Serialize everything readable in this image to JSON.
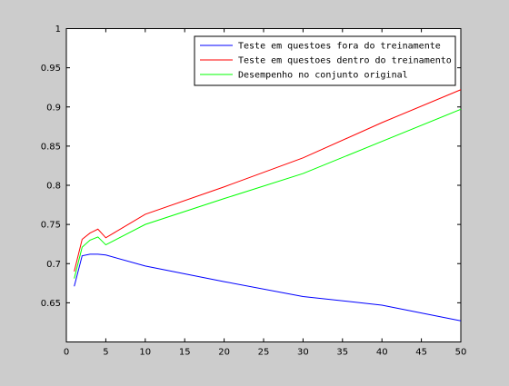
{
  "chart_data": {
    "type": "line",
    "title": "",
    "xlabel": "",
    "ylabel": "",
    "xlim": [
      0,
      50
    ],
    "ylim": [
      0.6,
      1.0
    ],
    "xticks": [
      0,
      5,
      10,
      15,
      20,
      25,
      30,
      35,
      40,
      45,
      50
    ],
    "yticks": [
      0.65,
      0.7,
      0.75,
      0.8,
      0.85,
      0.9,
      0.95,
      1
    ],
    "ytick_labels": [
      "0.65",
      "0.7",
      "0.75",
      "0.8",
      "0.85",
      "0.9",
      "0.95",
      "1"
    ],
    "grid": false,
    "legend_position": "top-right",
    "series": [
      {
        "name": "Teste em questoes fora do treinamente",
        "color": "#0000ff",
        "x": [
          1,
          2,
          3,
          4,
          5,
          10,
          20,
          30,
          40,
          50
        ],
        "y": [
          0.671,
          0.71,
          0.712,
          0.712,
          0.711,
          0.697,
          0.677,
          0.658,
          0.647,
          0.627
        ]
      },
      {
        "name": "Teste em questoes dentro do treinamento",
        "color": "#ff0000",
        "x": [
          1,
          2,
          3,
          4,
          5,
          10,
          20,
          30,
          40,
          50
        ],
        "y": [
          0.69,
          0.731,
          0.739,
          0.744,
          0.733,
          0.763,
          0.798,
          0.835,
          0.88,
          0.922
        ]
      },
      {
        "name": "Desempenho no conjunto original",
        "color": "#00ff00",
        "x": [
          1,
          2,
          3,
          4,
          5,
          10,
          20,
          30,
          40,
          50
        ],
        "y": [
          0.681,
          0.721,
          0.73,
          0.734,
          0.724,
          0.75,
          0.783,
          0.815,
          0.856,
          0.897
        ]
      }
    ]
  }
}
